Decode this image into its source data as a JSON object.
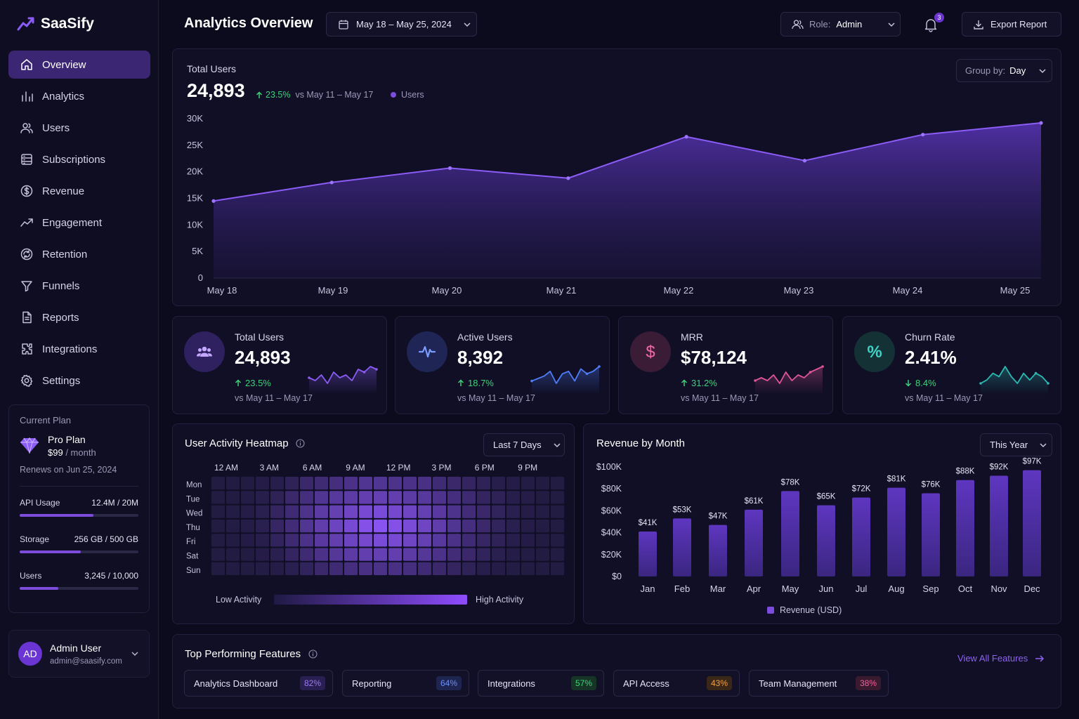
{
  "brand": {
    "name": "SaaSify"
  },
  "sidebar": {
    "items": [
      {
        "label": "Overview",
        "icon": "home-icon"
      },
      {
        "label": "Analytics",
        "icon": "bar-chart-icon"
      },
      {
        "label": "Users",
        "icon": "users-icon"
      },
      {
        "label": "Subscriptions",
        "icon": "list-icon"
      },
      {
        "label": "Revenue",
        "icon": "dollar-circle-icon"
      },
      {
        "label": "Engagement",
        "icon": "trend-icon"
      },
      {
        "label": "Retention",
        "icon": "retention-icon"
      },
      {
        "label": "Funnels",
        "icon": "funnel-icon"
      },
      {
        "label": "Reports",
        "icon": "document-icon"
      },
      {
        "label": "Integrations",
        "icon": "puzzle-icon"
      },
      {
        "label": "Settings",
        "icon": "gear-icon"
      }
    ],
    "plan": {
      "section_label": "Current Plan",
      "name": "Pro Plan",
      "price": "$99",
      "period": " / month",
      "renews": "Renews on Jun 25, 2024",
      "usage": [
        {
          "label": "API Usage",
          "value": "12.4M / 20M",
          "fraction": 0.62
        },
        {
          "label": "Storage",
          "value": "256 GB / 500 GB",
          "fraction": 0.512
        },
        {
          "label": "Users",
          "value": "3,245 / 10,000",
          "fraction": 0.3245
        }
      ]
    },
    "user": {
      "initials": "AD",
      "name": "Admin User",
      "email": "admin@saasify.com"
    }
  },
  "header": {
    "title": "Analytics Overview",
    "date_range": "May 18 – May 25, 2024",
    "role_label": "Role:",
    "role_value": "Admin",
    "notifications": "3",
    "export_label": "Export Report"
  },
  "total_users_panel": {
    "title": "Total Users",
    "value": "24,893",
    "change": "23.5%",
    "compare": "vs May 11 – May 17",
    "legend": "Users",
    "group_by_label": "Group by:",
    "group_by_value": "Day"
  },
  "kpis": [
    {
      "title": "Total Users",
      "value": "24,893",
      "change": "23.5%",
      "direction": "up",
      "compare": "vs May 11 – May 17",
      "icon": "users-icon",
      "color": "#8b5cf6",
      "spark": [
        5,
        4,
        6,
        3,
        7,
        5,
        6,
        4,
        8,
        7,
        9,
        8
      ]
    },
    {
      "title": "Active Users",
      "value": "8,392",
      "change": "18.7%",
      "direction": "up",
      "compare": "vs May 11 – May 17",
      "icon": "pulse-icon",
      "color": "#4f7cf7",
      "spark": [
        3,
        4,
        5,
        7,
        2,
        6,
        7,
        3,
        8,
        6,
        7,
        9
      ]
    },
    {
      "title": "MRR",
      "value": "$78,124",
      "change": "31.2%",
      "direction": "up",
      "compare": "vs May 11 – May 17",
      "icon": "dollar-icon",
      "color": "#e0559b",
      "spark": [
        4,
        5,
        4,
        6,
        3,
        7,
        4,
        6,
        5,
        7,
        8,
        9
      ]
    },
    {
      "title": "Churn Rate",
      "value": "2.41%",
      "change": "8.4%",
      "direction": "down",
      "compare": "vs May 11 – May 17",
      "icon": "percent-icon",
      "color": "#2cb8b0",
      "spark": [
        4,
        5,
        7,
        6,
        9,
        6,
        4,
        7,
        5,
        7,
        6,
        4
      ]
    }
  ],
  "heatmap": {
    "title": "User Activity Heatmap",
    "range": "Last 7 Days",
    "hours": [
      "12 AM",
      "3 AM",
      "6 AM",
      "9 AM",
      "12 PM",
      "3 PM",
      "6 PM",
      "9 PM"
    ],
    "days": [
      "Mon",
      "Tue",
      "Wed",
      "Thu",
      "Fri",
      "Sat",
      "Sun"
    ],
    "low_label": "Low Activity",
    "high_label": "High Activity"
  },
  "revenue": {
    "title": "Revenue by Month",
    "range": "This Year",
    "legend": "Revenue (USD)"
  },
  "features": {
    "title": "Top Performing Features",
    "view_all": "View All Features",
    "items": [
      {
        "name": "Analytics Dashboard",
        "pct": "82%",
        "color": "#9b7bf0",
        "bg": "#2a1f52"
      },
      {
        "name": "Reporting",
        "pct": "64%",
        "color": "#6f8ff5",
        "bg": "#1d2550"
      },
      {
        "name": "Integrations",
        "pct": "57%",
        "color": "#3fd27a",
        "bg": "#163526"
      },
      {
        "name": "API Access",
        "pct": "43%",
        "color": "#f0a04b",
        "bg": "#3a2717"
      },
      {
        "name": "Team Management",
        "pct": "38%",
        "color": "#f0609e",
        "bg": "#3a1a2e"
      }
    ]
  },
  "chart_data": [
    {
      "type": "area",
      "title": "Total Users",
      "categories": [
        "May 18",
        "May 19",
        "May 20",
        "May 21",
        "May 22",
        "May 23",
        "May 24",
        "May 25"
      ],
      "series": [
        {
          "name": "Users",
          "values": [
            14500,
            18000,
            20700,
            18800,
            26600,
            22100,
            27000,
            29200
          ]
        }
      ],
      "ylim": [
        0,
        30000
      ],
      "yticks": [
        "0",
        "5K",
        "10K",
        "15K",
        "20K",
        "25K",
        "30K"
      ],
      "grid": false,
      "legend": "top-left",
      "color": "#7c4ddd"
    },
    {
      "type": "heatmap",
      "title": "User Activity Heatmap",
      "x_labels": [
        "12 AM",
        "3 AM",
        "6 AM",
        "9 AM",
        "12 PM",
        "3 PM",
        "6 PM",
        "9 PM"
      ],
      "y_labels": [
        "Mon",
        "Tue",
        "Wed",
        "Thu",
        "Fri",
        "Sat",
        "Sun"
      ],
      "values": [
        [
          0.05,
          0.05,
          0.05,
          0.08,
          0.1,
          0.15,
          0.25,
          0.3,
          0.35,
          0.4,
          0.45,
          0.45,
          0.42,
          0.4,
          0.38,
          0.3,
          0.25,
          0.2,
          0.15,
          0.1,
          0.08,
          0.06,
          0.05,
          0.05
        ],
        [
          0.05,
          0.05,
          0.06,
          0.1,
          0.15,
          0.25,
          0.35,
          0.45,
          0.5,
          0.55,
          0.6,
          0.62,
          0.6,
          0.55,
          0.5,
          0.42,
          0.35,
          0.28,
          0.2,
          0.15,
          0.1,
          0.08,
          0.05,
          0.05
        ],
        [
          0.05,
          0.06,
          0.08,
          0.12,
          0.2,
          0.3,
          0.42,
          0.55,
          0.62,
          0.7,
          0.78,
          0.8,
          0.75,
          0.7,
          0.62,
          0.52,
          0.42,
          0.32,
          0.25,
          0.18,
          0.12,
          0.08,
          0.06,
          0.05
        ],
        [
          0.05,
          0.06,
          0.08,
          0.12,
          0.22,
          0.32,
          0.45,
          0.58,
          0.68,
          0.78,
          0.88,
          0.92,
          0.88,
          0.8,
          0.7,
          0.58,
          0.45,
          0.35,
          0.26,
          0.18,
          0.12,
          0.08,
          0.06,
          0.05
        ],
        [
          0.05,
          0.05,
          0.07,
          0.1,
          0.18,
          0.28,
          0.4,
          0.52,
          0.6,
          0.68,
          0.75,
          0.8,
          0.78,
          0.7,
          0.62,
          0.5,
          0.4,
          0.3,
          0.22,
          0.15,
          0.1,
          0.07,
          0.05,
          0.05
        ],
        [
          0.05,
          0.05,
          0.05,
          0.08,
          0.12,
          0.2,
          0.3,
          0.4,
          0.48,
          0.55,
          0.6,
          0.62,
          0.6,
          0.55,
          0.48,
          0.4,
          0.32,
          0.25,
          0.18,
          0.12,
          0.08,
          0.06,
          0.05,
          0.05
        ],
        [
          0.05,
          0.05,
          0.05,
          0.06,
          0.08,
          0.12,
          0.18,
          0.25,
          0.3,
          0.35,
          0.38,
          0.4,
          0.38,
          0.35,
          0.3,
          0.25,
          0.2,
          0.15,
          0.1,
          0.08,
          0.06,
          0.05,
          0.05,
          0.05
        ]
      ]
    },
    {
      "type": "bar",
      "title": "Revenue by Month",
      "categories": [
        "Jan",
        "Feb",
        "Mar",
        "Apr",
        "May",
        "Jun",
        "Jul",
        "Aug",
        "Sep",
        "Oct",
        "Nov",
        "Dec"
      ],
      "series": [
        {
          "name": "Revenue (USD)",
          "values": [
            41000,
            53000,
            47000,
            61000,
            78000,
            65000,
            72000,
            81000,
            76000,
            88000,
            92000,
            97000
          ]
        }
      ],
      "data_labels": [
        "$41K",
        "$53K",
        "$47K",
        "$61K",
        "$78K",
        "$65K",
        "$72K",
        "$81K",
        "$76K",
        "$88K",
        "$92K",
        "$97K"
      ],
      "ylim": [
        0,
        100000
      ],
      "yticks": [
        "$0",
        "$20K",
        "$40K",
        "$60K",
        "$80K",
        "$100K"
      ],
      "legend": "bottom",
      "color": "#5b34b8"
    }
  ]
}
